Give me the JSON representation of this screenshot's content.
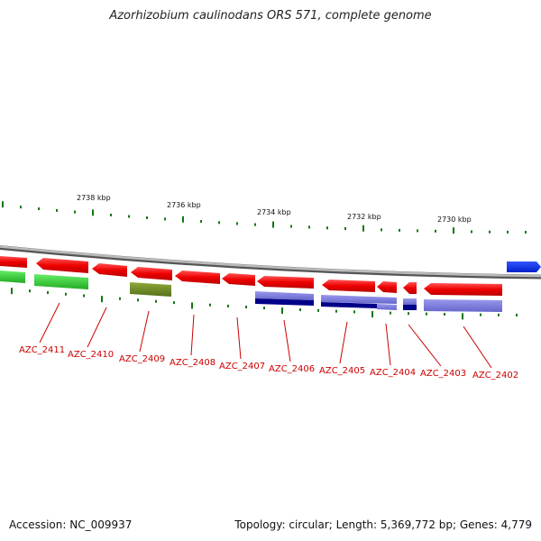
{
  "title": "Azorhizobium caulinodans ORS 571, complete genome",
  "footer": {
    "accession": "Accession: NC_009937",
    "stats": "Topology: circular; Length: 5,369,772 bp; Genes: 4,779"
  },
  "scale_labels": [
    "2738 kbp",
    "2736 kbp",
    "2734 kbp",
    "2732 kbp",
    "2730 kbp"
  ],
  "genes": [
    {
      "name": "AZC_2411"
    },
    {
      "name": "AZC_2410"
    },
    {
      "name": "AZC_2409"
    },
    {
      "name": "AZC_2408"
    },
    {
      "name": "AZC_2407"
    },
    {
      "name": "AZC_2406"
    },
    {
      "name": "AZC_2405"
    },
    {
      "name": "AZC_2404"
    },
    {
      "name": "AZC_2403"
    },
    {
      "name": "AZC_2402"
    }
  ],
  "colors": {
    "gene_arrow": "#ee1111",
    "label": "#cc0000",
    "backbone": "#888888",
    "tick": "#117711",
    "cog_green": "#33cc33",
    "cog_olive": "#6b8e23",
    "cog_lavender": "#7777dd",
    "cog_navy": "#000088",
    "forward_gene": "#1133ee"
  }
}
